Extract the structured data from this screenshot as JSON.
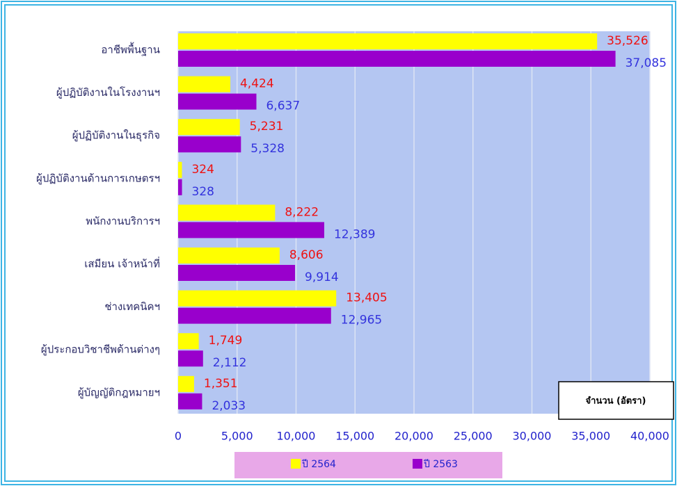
{
  "chart_data": {
    "type": "bar",
    "orientation": "horizontal",
    "categories": [
      "อาชีพพื้นฐาน",
      "ผู้ปฏิบัติงานในโรงงานฯ",
      "ผู้ปฏิบัติงานในธุรกิจ",
      "ผู้ปฏิบัติงานด้านการเกษตรฯ",
      "พนักงานบริการฯ",
      "เสมียน เจ้าหน้าที่",
      "ช่างเทคนิคฯ",
      "ผู้ประกอบวิชาชีพด้านต่างๆ",
      "ผู้บัญญัติกฎหมายฯ"
    ],
    "series": [
      {
        "name": "ปี 2564",
        "color": "#ffff00",
        "label_color": "#ee1111",
        "values": [
          35526,
          4424,
          5231,
          324,
          8222,
          8606,
          13405,
          1749,
          1351
        ],
        "value_labels": [
          "35,526",
          "4,424",
          "5,231",
          "324",
          "8,222",
          "8,606",
          "13,405",
          "1,749",
          "1,351"
        ]
      },
      {
        "name": "ปี 2563",
        "color": "#9900cc",
        "label_color": "#3333dd",
        "values": [
          37085,
          6637,
          5328,
          328,
          12389,
          9914,
          12965,
          2112,
          2033
        ],
        "value_labels": [
          "37,085",
          "6,637",
          "5,328",
          "328",
          "12,389",
          "9,914",
          "12,965",
          "2,112",
          "2,033"
        ]
      }
    ],
    "xlim": [
      0,
      40000
    ],
    "xticks": [
      0,
      {
        "value": 5000,
        "label": "5,000"
      },
      {
        "value": 10000,
        "label": "10,000"
      },
      {
        "value": 15000,
        "label": "15,000"
      },
      {
        "value": 20000,
        "label": "20,000"
      },
      {
        "value": 25000,
        "label": "25,000"
      },
      {
        "value": 30000,
        "label": "30,000"
      },
      {
        "value": 35000,
        "label": "35,000"
      },
      {
        "value": 40000,
        "label": "40,000"
      }
    ],
    "grid": true,
    "annotation": "จำนวน (อัตรา)"
  }
}
